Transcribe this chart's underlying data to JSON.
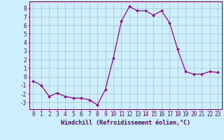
{
  "x": [
    0,
    1,
    2,
    3,
    4,
    5,
    6,
    7,
    8,
    9,
    10,
    11,
    12,
    13,
    14,
    15,
    16,
    17,
    18,
    19,
    20,
    21,
    22,
    23
  ],
  "y": [
    -0.5,
    -1.0,
    -2.3,
    -1.9,
    -2.3,
    -2.5,
    -2.5,
    -2.7,
    -3.3,
    -1.5,
    2.2,
    6.5,
    8.2,
    7.7,
    7.7,
    7.2,
    7.7,
    6.3,
    3.2,
    0.6,
    0.3,
    0.3,
    0.6,
    0.5
  ],
  "line_color": "#990099",
  "marker": "D",
  "marker_size": 2,
  "bg_color": "#cceeff",
  "grid_color": "#aacccc",
  "xlabel": "Windchill (Refroidissement éolien,°C)",
  "xlabel_color": "#660066",
  "tick_color": "#660066",
  "xlim": [
    -0.5,
    23.5
  ],
  "ylim": [
    -3.8,
    8.8
  ],
  "yticks": [
    -3,
    -2,
    -1,
    0,
    1,
    2,
    3,
    4,
    5,
    6,
    7,
    8
  ],
  "xticks": [
    0,
    1,
    2,
    3,
    4,
    5,
    6,
    7,
    8,
    9,
    10,
    11,
    12,
    13,
    14,
    15,
    16,
    17,
    18,
    19,
    20,
    21,
    22,
    23
  ],
  "tick_fontsize": 5.5,
  "xlabel_fontsize": 6.0
}
